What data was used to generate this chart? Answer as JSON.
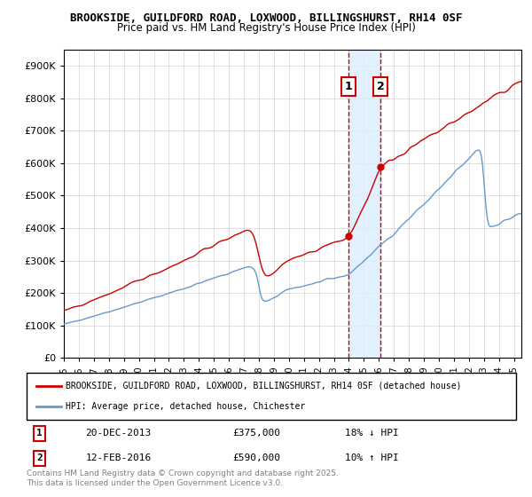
{
  "title1": "BROOKSIDE, GUILDFORD ROAD, LOXWOOD, BILLINGSHURST, RH14 0SF",
  "title2": "Price paid vs. HM Land Registry's House Price Index (HPI)",
  "ylabel": "",
  "xlim_start": 1995.0,
  "xlim_end": 2025.5,
  "ylim": [
    0,
    950000
  ],
  "yticks": [
    0,
    100000,
    200000,
    300000,
    400000,
    500000,
    600000,
    700000,
    800000,
    900000
  ],
  "ytick_labels": [
    "£0",
    "£100K",
    "£200K",
    "£300K",
    "£400K",
    "£500K",
    "£600K",
    "£700K",
    "£800K",
    "£900K"
  ],
  "xticks": [
    1995,
    1996,
    1997,
    1998,
    1999,
    2000,
    2001,
    2002,
    2003,
    2004,
    2005,
    2006,
    2007,
    2008,
    2009,
    2010,
    2011,
    2012,
    2013,
    2014,
    2015,
    2016,
    2017,
    2018,
    2019,
    2020,
    2021,
    2022,
    2023,
    2024,
    2025
  ],
  "sale1_x": 2013.97,
  "sale1_y": 375000,
  "sale1_label": "1",
  "sale1_date": "20-DEC-2013",
  "sale1_price": "£375,000",
  "sale1_hpi": "18% ↓ HPI",
  "sale2_x": 2016.12,
  "sale2_y": 590000,
  "sale2_label": "2",
  "sale2_date": "12-FEB-2016",
  "sale2_price": "£590,000",
  "sale2_hpi": "10% ↑ HPI",
  "red_color": "#cc0000",
  "blue_color": "#6699cc",
  "shade_color": "#ddeeff",
  "legend1": "BROOKSIDE, GUILDFORD ROAD, LOXWOOD, BILLINGSHURST, RH14 0SF (detached house)",
  "legend2": "HPI: Average price, detached house, Chichester",
  "footnote": "Contains HM Land Registry data © Crown copyright and database right 2025.\nThis data is licensed under the Open Government Licence v3.0."
}
